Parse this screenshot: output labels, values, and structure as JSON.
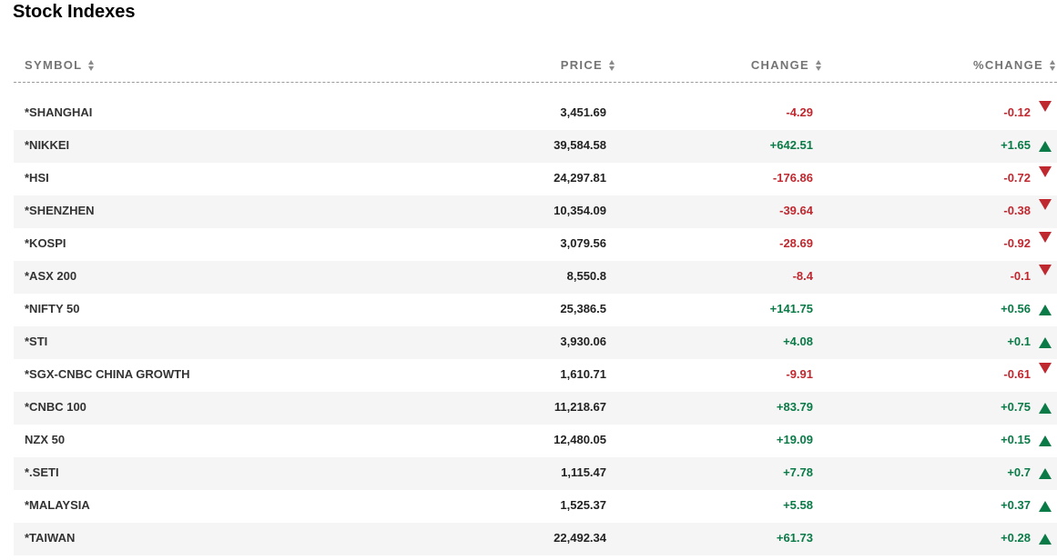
{
  "title": "Stock Indexes",
  "columns": {
    "symbol": "SYMBOL",
    "price": "PRICE",
    "change": "CHANGE",
    "pct_change": "%CHANGE"
  },
  "colors": {
    "up": "#0a7a47",
    "down": "#c0282f"
  },
  "rows": [
    {
      "symbol": "*SHANGHAI",
      "price": "3,451.69",
      "change": "-4.29",
      "pct_change": "-0.12",
      "direction": "down"
    },
    {
      "symbol": "*NIKKEI",
      "price": "39,584.58",
      "change": "+642.51",
      "pct_change": "+1.65",
      "direction": "up"
    },
    {
      "symbol": "*HSI",
      "price": "24,297.81",
      "change": "-176.86",
      "pct_change": "-0.72",
      "direction": "down"
    },
    {
      "symbol": "*SHENZHEN",
      "price": "10,354.09",
      "change": "-39.64",
      "pct_change": "-0.38",
      "direction": "down"
    },
    {
      "symbol": "*KOSPI",
      "price": "3,079.56",
      "change": "-28.69",
      "pct_change": "-0.92",
      "direction": "down"
    },
    {
      "symbol": "*ASX 200",
      "price": "8,550.8",
      "change": "-8.4",
      "pct_change": "-0.1",
      "direction": "down"
    },
    {
      "symbol": "*NIFTY 50",
      "price": "25,386.5",
      "change": "+141.75",
      "pct_change": "+0.56",
      "direction": "up"
    },
    {
      "symbol": "*STI",
      "price": "3,930.06",
      "change": "+4.08",
      "pct_change": "+0.1",
      "direction": "up"
    },
    {
      "symbol": "*SGX-CNBC CHINA GROWTH",
      "price": "1,610.71",
      "change": "-9.91",
      "pct_change": "-0.61",
      "direction": "down"
    },
    {
      "symbol": "*CNBC 100",
      "price": "11,218.67",
      "change": "+83.79",
      "pct_change": "+0.75",
      "direction": "up"
    },
    {
      "symbol": "NZX 50",
      "price": "12,480.05",
      "change": "+19.09",
      "pct_change": "+0.15",
      "direction": "up"
    },
    {
      "symbol": "*.SETI",
      "price": "1,115.47",
      "change": "+7.78",
      "pct_change": "+0.7",
      "direction": "up"
    },
    {
      "symbol": "*MALAYSIA",
      "price": "1,525.37",
      "change": "+5.58",
      "pct_change": "+0.37",
      "direction": "up"
    },
    {
      "symbol": "*TAIWAN",
      "price": "22,492.34",
      "change": "+61.73",
      "pct_change": "+0.28",
      "direction": "up"
    }
  ]
}
